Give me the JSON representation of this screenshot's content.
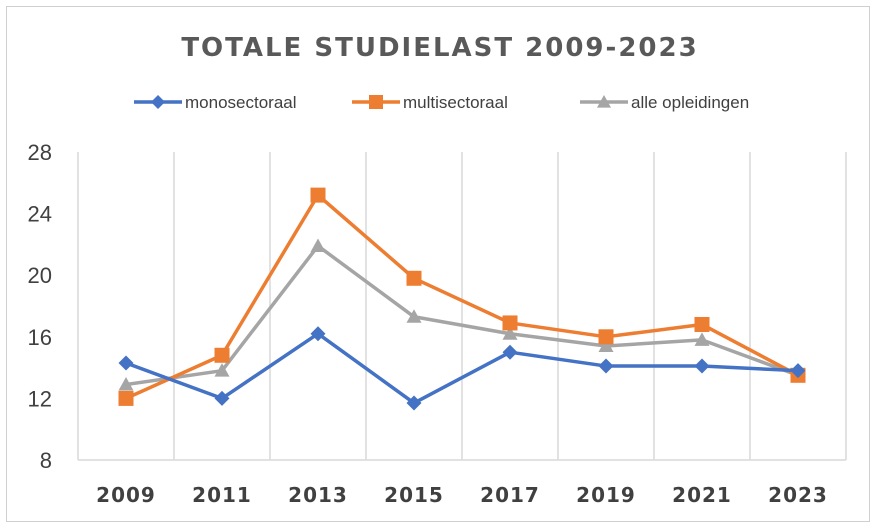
{
  "chart_data": {
    "type": "line",
    "title": "TOTALE STUDIELAST 2009-2023",
    "xlabel": "",
    "ylabel": "",
    "categories": [
      "2009",
      "2011",
      "2013",
      "2015",
      "2017",
      "2019",
      "2021",
      "2023"
    ],
    "y_ticks": [
      "8",
      "12",
      "16",
      "20",
      "24",
      "28"
    ],
    "ylim": [
      8,
      28
    ],
    "grid": "vertical",
    "legend_position": "top",
    "series": [
      {
        "name": "monosectoraal",
        "color": "#4472C4",
        "marker": "diamond",
        "values": [
          14.3,
          12.0,
          16.2,
          11.7,
          15.0,
          14.1,
          14.1,
          13.8
        ]
      },
      {
        "name": "multisectoraal",
        "color": "#ED7D31",
        "marker": "square",
        "values": [
          12.0,
          14.8,
          25.2,
          19.8,
          16.9,
          16.0,
          16.8,
          13.5
        ]
      },
      {
        "name": "alle opleidingen",
        "color": "#A5A5A5",
        "marker": "triangle",
        "values": [
          12.9,
          13.8,
          21.9,
          17.3,
          16.2,
          15.4,
          15.8,
          13.5
        ]
      }
    ]
  }
}
